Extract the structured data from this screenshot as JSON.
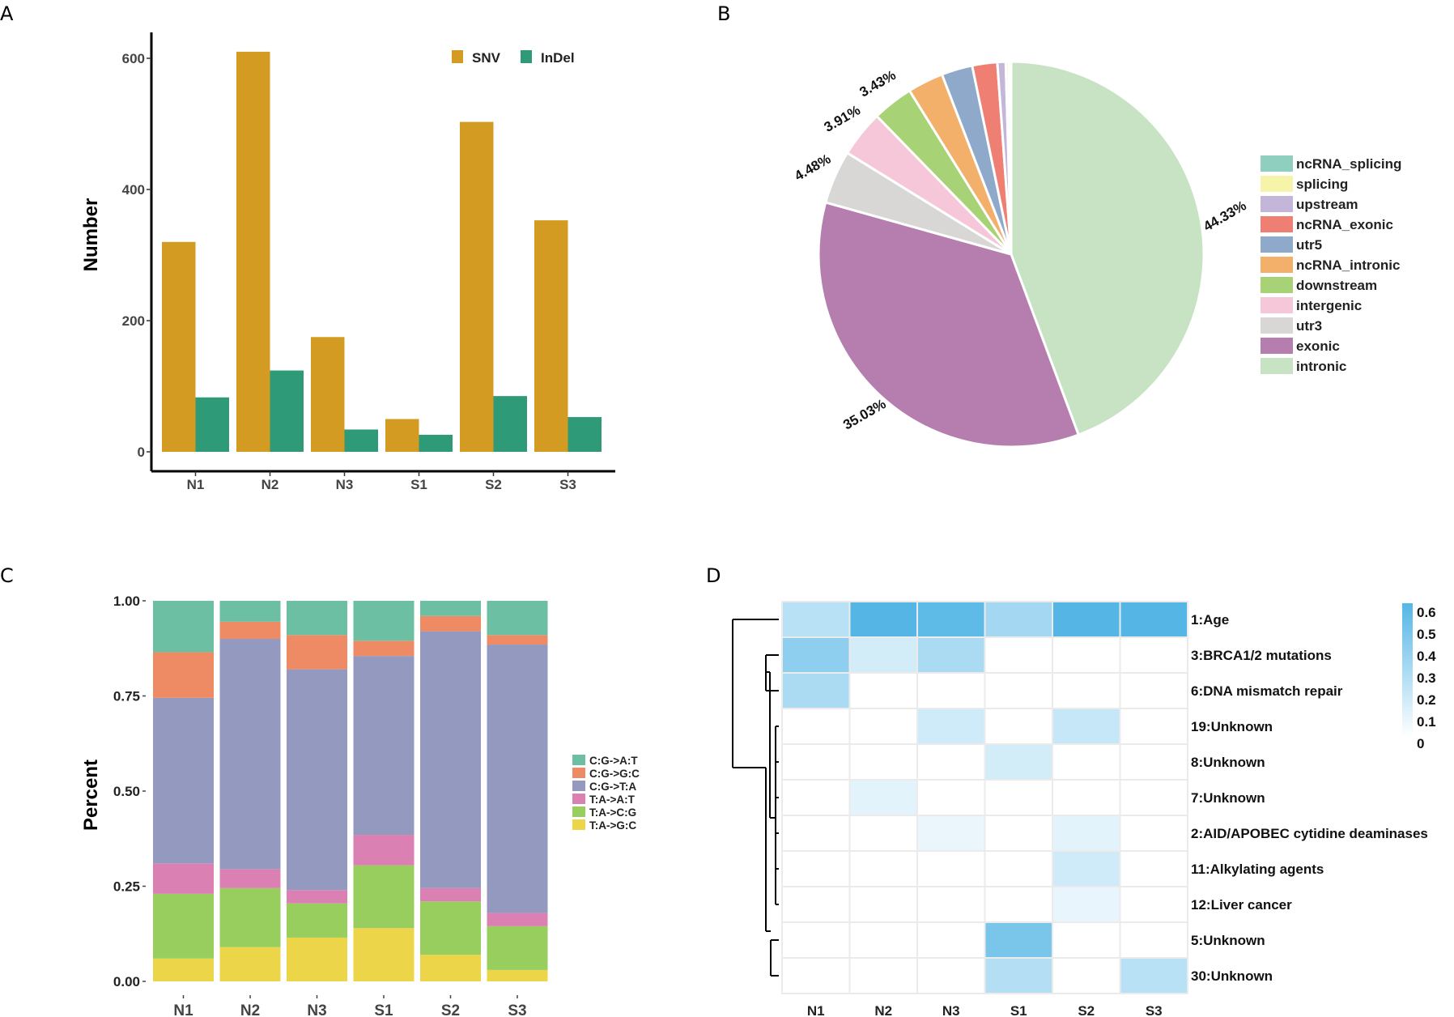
{
  "panels": {
    "a": "A",
    "b": "B",
    "c": "C",
    "d": "D"
  },
  "colors": {
    "snv": "#D49B22",
    "indel": "#2E9A78",
    "pie": {
      "intronic": "#C7E3C4",
      "exonic": "#B67DAF",
      "utr3": "#D9D7D6",
      "intergenic": "#F6C7D8",
      "downstream": "#A7D275",
      "ncRNA_intronic": "#F3B06B",
      "utr5": "#8EA9C9",
      "ncRNA_exonic": "#EF7F73",
      "upstream": "#C4B6D8",
      "splicing": "#F5F4A8",
      "ncRNA_splicing": "#8FCFC0"
    },
    "stack": [
      "#6DBFA3",
      "#EE8B65",
      "#949ABF",
      "#DA80B2",
      "#97CE5E",
      "#EDD54A"
    ],
    "heat_high": "#55B6E6"
  },
  "chart_data": [
    {
      "type": "bar",
      "panel": "A",
      "categories": [
        "N1",
        "N2",
        "N3",
        "S1",
        "S2",
        "S3"
      ],
      "series": [
        {
          "name": "SNV",
          "values": [
            320,
            610,
            175,
            50,
            503,
            353
          ]
        },
        {
          "name": "InDel",
          "values": [
            83,
            124,
            34,
            26,
            85,
            53
          ]
        }
      ],
      "ylabel": "Number",
      "ylim": [
        0,
        640
      ],
      "yticks": [
        0,
        200,
        400,
        600
      ],
      "legend": "top-right"
    },
    {
      "type": "pie",
      "panel": "B",
      "slices": [
        {
          "name": "intronic",
          "value": 44.33
        },
        {
          "name": "exonic",
          "value": 35.03
        },
        {
          "name": "utr3",
          "value": 4.48
        },
        {
          "name": "intergenic",
          "value": 3.91
        },
        {
          "name": "downstream",
          "value": 3.43
        },
        {
          "name": "ncRNA_intronic",
          "value": 3.0
        },
        {
          "name": "utr5",
          "value": 2.6
        },
        {
          "name": "ncRNA_exonic",
          "value": 2.1
        },
        {
          "name": "upstream",
          "value": 0.7
        },
        {
          "name": "splicing",
          "value": 0.25
        },
        {
          "name": "ncRNA_splicing",
          "value": 0.2
        }
      ],
      "labels": [
        {
          "slice": "intronic",
          "text": "44.33%"
        },
        {
          "slice": "exonic",
          "text": "35.03%"
        },
        {
          "slice": "utr3",
          "text": "4.48%"
        },
        {
          "slice": "intergenic",
          "text": "3.91%"
        },
        {
          "slice": "downstream",
          "text": "3.43%"
        }
      ],
      "legend_order": [
        "ncRNA_splicing",
        "splicing",
        "upstream",
        "ncRNA_exonic",
        "utr5",
        "ncRNA_intronic",
        "downstream",
        "intergenic",
        "utr3",
        "exonic",
        "intronic"
      ],
      "legend": "right"
    },
    {
      "type": "bar",
      "stacked": true,
      "panel": "C",
      "categories": [
        "N1",
        "N2",
        "N3",
        "S1",
        "S2",
        "S3"
      ],
      "series": [
        {
          "name": "T:A->G:C",
          "values": [
            0.06,
            0.09,
            0.115,
            0.14,
            0.07,
            0.03
          ]
        },
        {
          "name": "T:A->C:G",
          "values": [
            0.17,
            0.155,
            0.09,
            0.165,
            0.14,
            0.115
          ]
        },
        {
          "name": "T:A->A:T",
          "values": [
            0.08,
            0.05,
            0.035,
            0.08,
            0.035,
            0.035
          ]
        },
        {
          "name": "C:G->T:A",
          "values": [
            0.435,
            0.605,
            0.58,
            0.47,
            0.675,
            0.705
          ]
        },
        {
          "name": "C:G->G:C",
          "values": [
            0.12,
            0.045,
            0.09,
            0.04,
            0.04,
            0.025
          ]
        },
        {
          "name": "C:G->A:T",
          "values": [
            0.135,
            0.055,
            0.09,
            0.105,
            0.04,
            0.09
          ]
        }
      ],
      "legend_order": [
        "C:G->A:T",
        "C:G->G:C",
        "C:G->T:A",
        "T:A->A:T",
        "T:A->C:G",
        "T:A->G:C"
      ],
      "ylabel": "Percent",
      "ylim": [
        0,
        1
      ],
      "yticks": [
        "0.00",
        "0.25",
        "0.50",
        "0.75",
        "1.00"
      ],
      "legend": "right"
    },
    {
      "type": "heatmap",
      "panel": "D",
      "columns": [
        "N1",
        "N2",
        "N3",
        "S1",
        "S2",
        "S3"
      ],
      "rows": [
        "1:Age",
        "3:BRCA1/2 mutations",
        "6:DNA mismatch repair",
        "19:Unknown",
        "8:Unknown",
        "7:Unknown",
        "2:AID/APOBEC cytidine deaminases",
        "11:Alkylating agents",
        "12:Liver cancer",
        "5:Unknown",
        "30:Unknown"
      ],
      "values": [
        [
          0.25,
          0.62,
          0.57,
          0.32,
          0.6,
          0.6
        ],
        [
          0.4,
          0.16,
          0.3,
          0,
          0,
          0
        ],
        [
          0.3,
          0,
          0,
          0,
          0,
          0
        ],
        [
          0,
          0,
          0.17,
          0,
          0.2,
          0
        ],
        [
          0,
          0,
          0,
          0.16,
          0,
          0
        ],
        [
          0,
          0.1,
          0,
          0,
          0,
          0
        ],
        [
          0,
          0,
          0.07,
          0,
          0.1,
          0
        ],
        [
          0,
          0,
          0,
          0,
          0.17,
          0
        ],
        [
          0,
          0,
          0,
          0,
          0.08,
          0
        ],
        [
          0,
          0,
          0,
          0.47,
          0,
          0
        ],
        [
          0,
          0,
          0,
          0.27,
          0,
          0.25
        ]
      ],
      "colorbar": {
        "min": 0,
        "max": 0.6,
        "ticks": [
          "0",
          "0.1",
          "0.2",
          "0.3",
          "0.4",
          "0.5",
          "0.6"
        ]
      },
      "dendrogram": "rows"
    }
  ]
}
